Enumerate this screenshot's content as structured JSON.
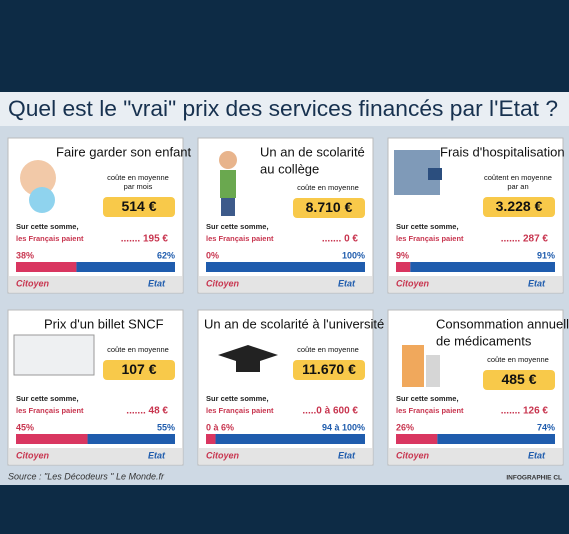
{
  "header": {
    "title": "Quel est le \"vrai\" prix des services financés par l'Etat ?"
  },
  "cards": [
    {
      "title": [
        "Faire garder son enfant"
      ],
      "note": [
        "coûte en moyenne",
        "par mois"
      ],
      "price": "514 €",
      "intro": "Sur cette somme,",
      "payer": "les Français paient",
      "paid": "....... 195 €",
      "citizen_share": {
        "value": 38,
        "label": "38%"
      },
      "state_share": {
        "value": 62,
        "label": "62%"
      },
      "citizen_label": "Citoyen",
      "state_label": "Etat"
    },
    {
      "title": [
        "Un an de scolarité",
        "au collège"
      ],
      "note": [
        "coûte en moyenne"
      ],
      "price": "8.710 €",
      "intro": "Sur cette somme,",
      "payer": "les Français paient",
      "paid": "....... 0 €",
      "citizen_share": {
        "value": 0,
        "label": "0%"
      },
      "state_share": {
        "value": 100,
        "label": "100%"
      },
      "citizen_label": "Citoyen",
      "state_label": "Etat"
    },
    {
      "title": [
        "Frais d'hospitalisation"
      ],
      "note": [
        "coûtent en moyenne",
        "par an"
      ],
      "price": "3.228 €",
      "intro": "Sur cette somme,",
      "payer": "les Français paient",
      "paid": "....... 287 €",
      "citizen_share": {
        "value": 9,
        "label": "9%"
      },
      "state_share": {
        "value": 91,
        "label": "91%"
      },
      "citizen_label": "Citoyen",
      "state_label": "Etat"
    },
    {
      "title": [
        "Prix d'un billet SNCF"
      ],
      "note": [
        "coûte en moyenne"
      ],
      "price": "107 €",
      "intro": "Sur cette somme,",
      "payer": "les Français paient",
      "paid": "....... 48 €",
      "citizen_share": {
        "value": 45,
        "label": "45%"
      },
      "state_share": {
        "value": 55,
        "label": "55%"
      },
      "citizen_label": "Citoyen",
      "state_label": "Etat"
    },
    {
      "title": [
        "Un an de scolarité à l'université"
      ],
      "note": [
        "coûte en moyenne"
      ],
      "price": "11.670 €",
      "intro": "Sur cette somme,",
      "payer": "les Français paient",
      "paid": ".....0 à 600 €",
      "citizen_share": {
        "value": 6,
        "label": "0 à 6%"
      },
      "state_share": {
        "value": 94,
        "label": "94 à 100%"
      },
      "citizen_label": "Citoyen",
      "state_label": "Etat"
    },
    {
      "title": [
        "Consommation annuelle",
        "de médicaments"
      ],
      "note": [
        "coûte en moyenne"
      ],
      "price": "485 €",
      "intro": "Sur cette somme,",
      "payer": "les Français paient",
      "paid": "....... 126 €",
      "citizen_share": {
        "value": 26,
        "label": "26%"
      },
      "state_share": {
        "value": 74,
        "label": "74%"
      },
      "citizen_label": "Citoyen",
      "state_label": "Etat"
    }
  ],
  "footer": {
    "source": "Source : \"Les Décodeurs \" Le Monde.fr",
    "credit": "INFOGRAPHIE CL"
  }
}
